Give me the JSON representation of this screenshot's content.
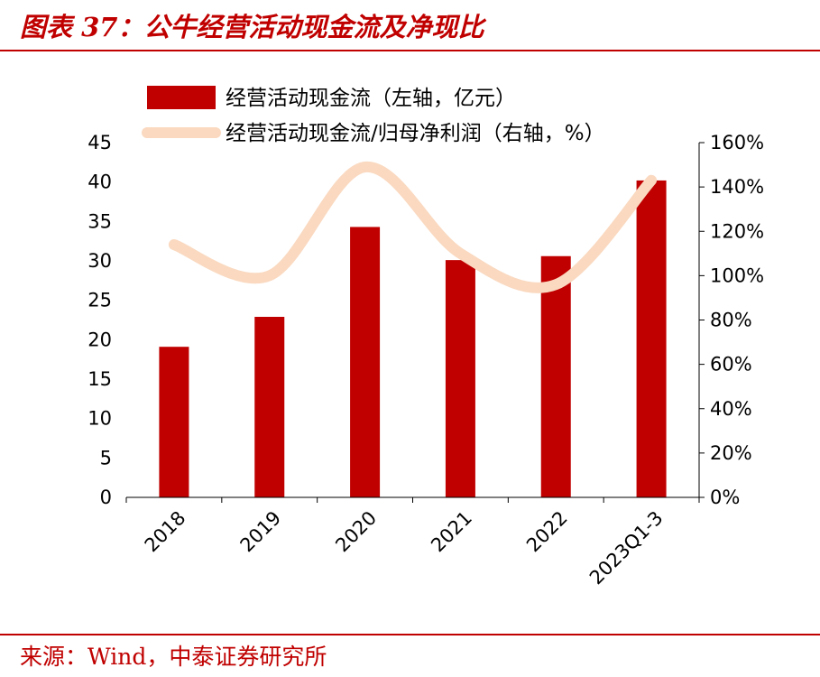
{
  "header": {
    "title": "图表 37：公牛经营活动现金流及净现比"
  },
  "footer": {
    "source": "来源：Wind，中泰证券研究所"
  },
  "colors": {
    "bar": "#c00000",
    "line": "#fad9c0",
    "accent": "#c00000"
  },
  "chart_data": {
    "type": "bar",
    "categories": [
      "2018",
      "2019",
      "2020",
      "2021",
      "2022",
      "2023Q1-3"
    ],
    "series": [
      {
        "name": "经营活动现金流（左轴，亿元）",
        "type": "bar",
        "axis": "left",
        "values": [
          19.1,
          22.9,
          34.3,
          30.1,
          30.6,
          40.2
        ]
      },
      {
        "name": "经营活动现金流/归母净利润（右轴，%）",
        "type": "line",
        "axis": "right",
        "values": [
          114,
          100,
          149,
          110,
          96,
          143
        ]
      }
    ],
    "y_left": {
      "ylim": [
        0,
        45
      ],
      "ticks": [
        "0",
        "5",
        "10",
        "15",
        "20",
        "25",
        "30",
        "35",
        "40",
        "45"
      ]
    },
    "y_right": {
      "ylim": [
        0,
        160
      ],
      "ticks": [
        "0%",
        "20%",
        "40%",
        "60%",
        "80%",
        "100%",
        "120%",
        "140%",
        "160%"
      ]
    },
    "grid": false,
    "legend_position": "top"
  }
}
